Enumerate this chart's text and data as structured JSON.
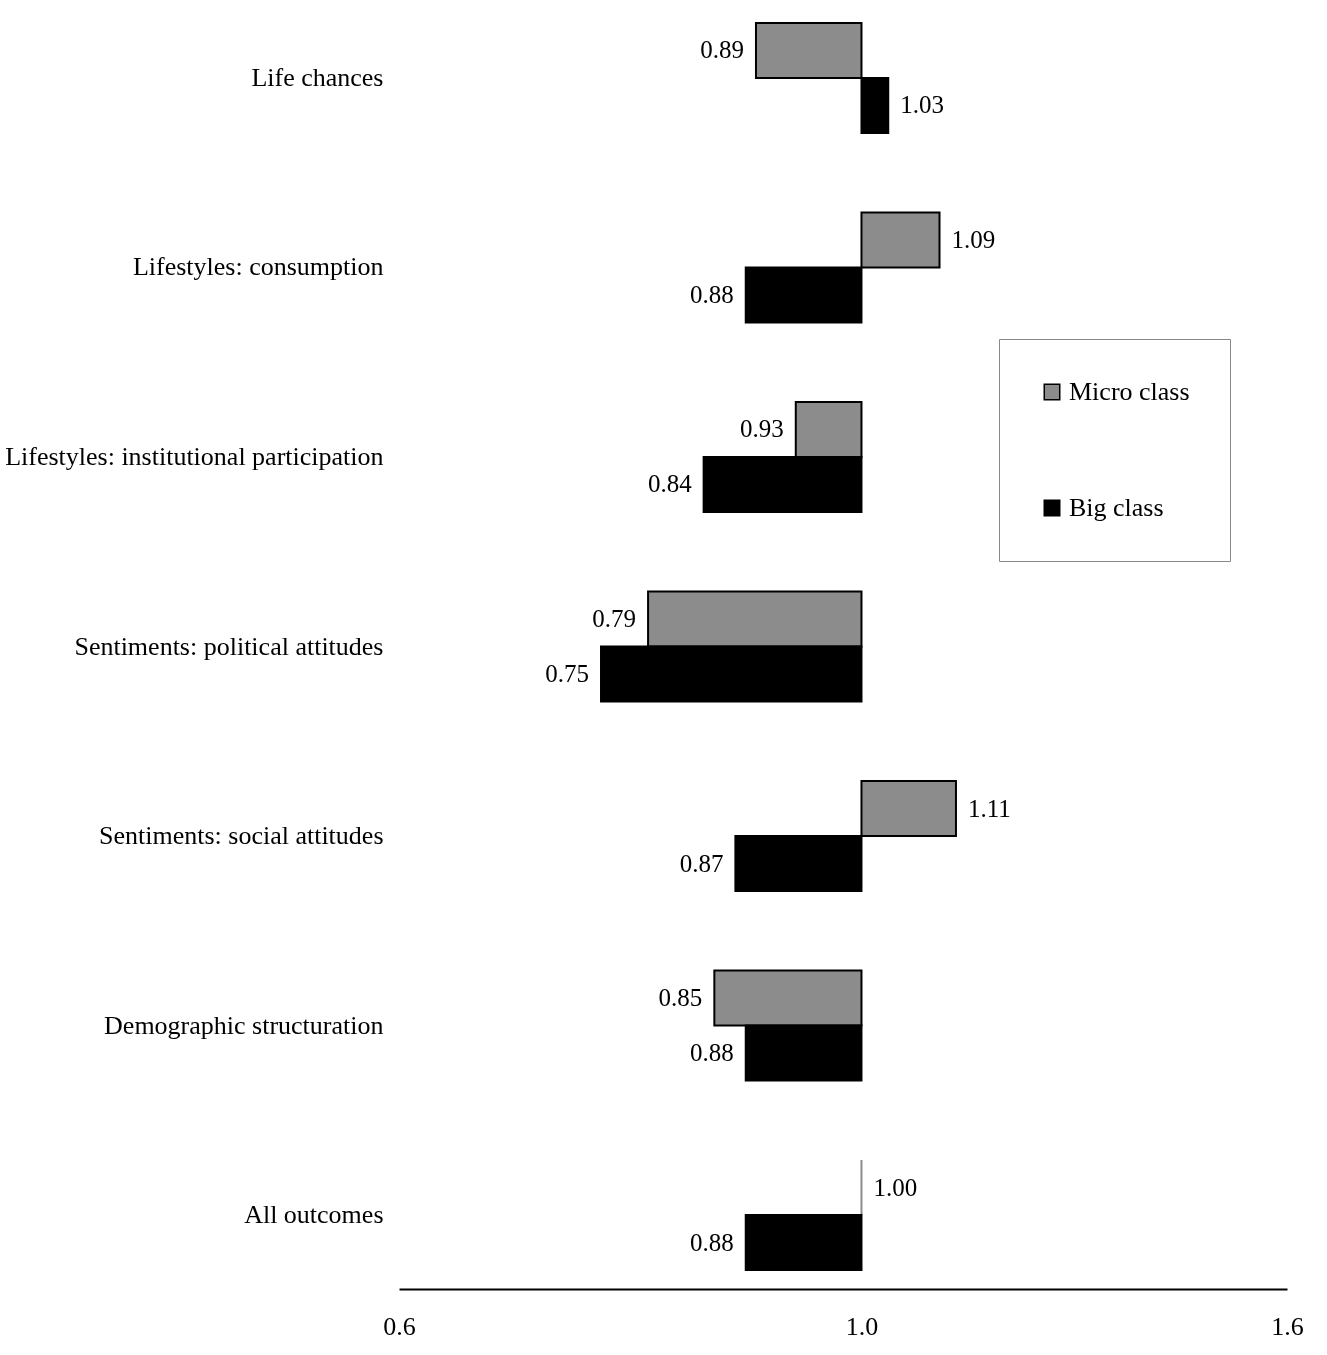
{
  "chart_data": {
    "type": "bar",
    "orientation": "horizontal",
    "log": "x",
    "categories": [
      "Life chances",
      "Lifestyles: consumption",
      "Lifestyles: institutional participation",
      "Sentiments: political attitudes",
      "Sentiments: social attitudes",
      "Demographic structuration",
      "All outcomes"
    ],
    "series": [
      {
        "name": "Micro class",
        "color": "#8c8c8c",
        "base": [
          1,
          1,
          1,
          1,
          1,
          1,
          1
        ],
        "values": [
          -0.11,
          0.09,
          -0.07,
          -0.21,
          0.11,
          -0.15,
          0.0
        ],
        "value_labels": [
          "0.89",
          "1.09",
          "0.93",
          "0.79",
          "1.11",
          "0.85",
          "1.00"
        ]
      },
      {
        "name": "Big class",
        "color": "#000000",
        "base": [
          1,
          1,
          1,
          1,
          1,
          1,
          1
        ],
        "values": [
          0.03,
          -0.12,
          -0.16,
          -0.25,
          -0.13,
          -0.12,
          -0.12
        ],
        "value_labels": [
          "1.03",
          "0.88",
          "0.84",
          "0.75",
          "0.87",
          "0.88",
          "0.88"
        ]
      }
    ],
    "xlim": [
      0.6,
      1.6
    ],
    "xticks": [
      {
        "value": 0.6,
        "label": "0.6"
      },
      {
        "value": 1,
        "label": "1.0"
      },
      {
        "value": 1.6,
        "label": "1.6"
      }
    ],
    "legend": "right"
  }
}
